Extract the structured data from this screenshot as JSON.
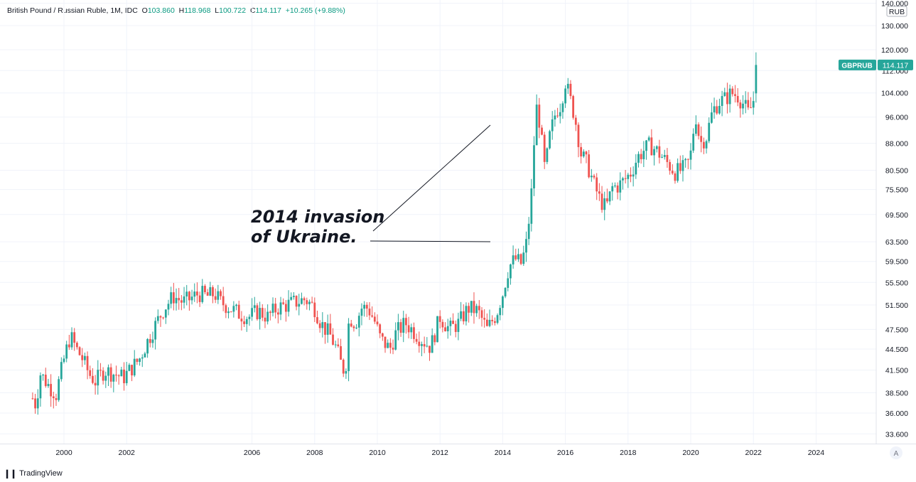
{
  "legend": {
    "symbol": "British Pound / Russian Ruble, 1M, IDC",
    "open_label": "O",
    "open": "103.860",
    "high_label": "H",
    "high": "118.968",
    "low_label": "L",
    "low": "100.722",
    "close_label": "C",
    "close": "114.117",
    "change": "+10.265 (+9.88%)"
  },
  "price_axis": {
    "currency": "RUB",
    "labels": [
      "140.000",
      "130.000",
      "120.000",
      "112.000",
      "104.000",
      "96.000",
      "88.000",
      "80.500",
      "75.500",
      "69.500",
      "63.500",
      "59.500",
      "55.500",
      "51.500",
      "47.500",
      "44.500",
      "41.500",
      "38.500",
      "36.000",
      "33.600"
    ]
  },
  "price_tag": {
    "symbol": "GBPRUB",
    "value": "114.117"
  },
  "auto_scale_button": "A",
  "brand": {
    "name": "TradingView"
  },
  "colors": {
    "up": "#26a69a",
    "down": "#ef5350",
    "grid": "#f0f3fa",
    "text": "#131722",
    "tag": "#26a69a"
  },
  "annotation": {
    "line1": "2014 invasion",
    "line2": "of Ukraine."
  },
  "chart_data": {
    "type": "candlestick",
    "title": "British Pound / Russian Ruble, 1M, IDC",
    "x_ticks": [
      "2000",
      "2002",
      "2006",
      "2008",
      "2010",
      "2012",
      "2014",
      "2016",
      "2018",
      "2020",
      "2022",
      "2024"
    ],
    "x_tick_years": [
      2000,
      2002,
      2006,
      2008,
      2010,
      2012,
      2014,
      2016,
      2018,
      2020,
      2022,
      2024
    ],
    "y_ticks": [
      140,
      130,
      120,
      112,
      104,
      96,
      88,
      80.5,
      75.5,
      69.5,
      63.5,
      59.5,
      55.5,
      51.5,
      47.5,
      44.5,
      41.5,
      38.5,
      36,
      33.6
    ],
    "x_range": [
      1998.6,
      2025.4
    ],
    "y_range": [
      32.0,
      142.0
    ],
    "y_scale": "log",
    "grid": true,
    "series": [
      {
        "t": 1999.0,
        "c": 37.8
      },
      {
        "t": 1999.1,
        "c": 37.0
      },
      {
        "t": 1999.25,
        "c": 41.0
      },
      {
        "t": 1999.5,
        "c": 39.5
      },
      {
        "t": 1999.75,
        "c": 38.3
      },
      {
        "t": 2000.0,
        "c": 43.0
      },
      {
        "t": 2000.2,
        "c": 46.5
      },
      {
        "t": 2000.4,
        "c": 44.5
      },
      {
        "t": 2000.6,
        "c": 43.0
      },
      {
        "t": 2000.8,
        "c": 41.0
      },
      {
        "t": 2001.0,
        "c": 40.0
      },
      {
        "t": 2001.3,
        "c": 41.5
      },
      {
        "t": 2001.6,
        "c": 41.0
      },
      {
        "t": 2001.9,
        "c": 40.5
      },
      {
        "t": 2002.1,
        "c": 41.5
      },
      {
        "t": 2002.4,
        "c": 43.0
      },
      {
        "t": 2002.7,
        "c": 46.0
      },
      {
        "t": 2003.0,
        "c": 49.0
      },
      {
        "t": 2003.2,
        "c": 51.0
      },
      {
        "t": 2003.5,
        "c": 53.0
      },
      {
        "t": 2003.8,
        "c": 52.0
      },
      {
        "t": 2004.0,
        "c": 52.5
      },
      {
        "t": 2004.3,
        "c": 53.5
      },
      {
        "t": 2004.6,
        "c": 53.0
      },
      {
        "t": 2004.8,
        "c": 53.5
      },
      {
        "t": 2005.0,
        "c": 52.0
      },
      {
        "t": 2005.3,
        "c": 51.0
      },
      {
        "t": 2005.6,
        "c": 50.0
      },
      {
        "t": 2005.9,
        "c": 49.5
      },
      {
        "t": 2006.2,
        "c": 50.5
      },
      {
        "t": 2006.5,
        "c": 49.5
      },
      {
        "t": 2006.8,
        "c": 51.0
      },
      {
        "t": 2007.1,
        "c": 51.5
      },
      {
        "t": 2007.4,
        "c": 52.0
      },
      {
        "t": 2007.7,
        "c": 52.5
      },
      {
        "t": 2008.0,
        "c": 51.0
      },
      {
        "t": 2008.2,
        "c": 48.5
      },
      {
        "t": 2008.5,
        "c": 46.5
      },
      {
        "t": 2008.7,
        "c": 44.5
      },
      {
        "t": 2008.9,
        "c": 41.5
      },
      {
        "t": 2009.0,
        "c": 42.5
      },
      {
        "t": 2009.1,
        "c": 49.5
      },
      {
        "t": 2009.3,
        "c": 48.5
      },
      {
        "t": 2009.5,
        "c": 51.0
      },
      {
        "t": 2009.7,
        "c": 51.0
      },
      {
        "t": 2009.9,
        "c": 49.0
      },
      {
        "t": 2010.1,
        "c": 46.0
      },
      {
        "t": 2010.4,
        "c": 44.5
      },
      {
        "t": 2010.6,
        "c": 47.0
      },
      {
        "t": 2010.9,
        "c": 48.5
      },
      {
        "t": 2011.1,
        "c": 47.5
      },
      {
        "t": 2011.4,
        "c": 46.0
      },
      {
        "t": 2011.7,
        "c": 44.8
      },
      {
        "t": 2012.0,
        "c": 49.5
      },
      {
        "t": 2012.3,
        "c": 47.5
      },
      {
        "t": 2012.6,
        "c": 48.5
      },
      {
        "t": 2012.9,
        "c": 51.0
      },
      {
        "t": 2013.2,
        "c": 50.5
      },
      {
        "t": 2013.5,
        "c": 47.5
      },
      {
        "t": 2013.8,
        "c": 50.0
      },
      {
        "t": 2014.0,
        "c": 53.5
      },
      {
        "t": 2014.2,
        "c": 58.5
      },
      {
        "t": 2014.4,
        "c": 60.0
      },
      {
        "t": 2014.6,
        "c": 59.0
      },
      {
        "t": 2014.75,
        "c": 63.0
      },
      {
        "t": 2014.9,
        "c": 72.0
      },
      {
        "t": 2015.0,
        "c": 88.0
      },
      {
        "t": 2015.1,
        "c": 101.0
      },
      {
        "t": 2015.2,
        "c": 92.0
      },
      {
        "t": 2015.35,
        "c": 80.0
      },
      {
        "t": 2015.5,
        "c": 90.0
      },
      {
        "t": 2015.7,
        "c": 98.0
      },
      {
        "t": 2015.85,
        "c": 100.0
      },
      {
        "t": 2016.0,
        "c": 108.0
      },
      {
        "t": 2016.1,
        "c": 104.0
      },
      {
        "t": 2016.3,
        "c": 96.0
      },
      {
        "t": 2016.5,
        "c": 85.0
      },
      {
        "t": 2016.7,
        "c": 82.0
      },
      {
        "t": 2016.9,
        "c": 77.0
      },
      {
        "t": 2017.1,
        "c": 73.0
      },
      {
        "t": 2017.3,
        "c": 71.0
      },
      {
        "t": 2017.5,
        "c": 76.0
      },
      {
        "t": 2017.7,
        "c": 76.5
      },
      {
        "t": 2017.9,
        "c": 78.0
      },
      {
        "t": 2018.1,
        "c": 80.0
      },
      {
        "t": 2018.3,
        "c": 84.0
      },
      {
        "t": 2018.5,
        "c": 86.0
      },
      {
        "t": 2018.7,
        "c": 87.5
      },
      {
        "t": 2018.9,
        "c": 86.0
      },
      {
        "t": 2019.1,
        "c": 84.0
      },
      {
        "t": 2019.3,
        "c": 82.0
      },
      {
        "t": 2019.5,
        "c": 80.0
      },
      {
        "t": 2019.7,
        "c": 80.5
      },
      {
        "t": 2019.9,
        "c": 82.0
      },
      {
        "t": 2020.0,
        "c": 85.0
      },
      {
        "t": 2020.15,
        "c": 97.0
      },
      {
        "t": 2020.3,
        "c": 88.0
      },
      {
        "t": 2020.5,
        "c": 90.0
      },
      {
        "t": 2020.7,
        "c": 98.0
      },
      {
        "t": 2020.9,
        "c": 101.0
      },
      {
        "t": 2021.1,
        "c": 102.0
      },
      {
        "t": 2021.3,
        "c": 104.0
      },
      {
        "t": 2021.5,
        "c": 103.0
      },
      {
        "t": 2021.7,
        "c": 100.0
      },
      {
        "t": 2021.85,
        "c": 97.0
      },
      {
        "t": 2022.0,
        "c": 101.5
      },
      {
        "t": 2022.1,
        "c": 114.117
      }
    ]
  }
}
